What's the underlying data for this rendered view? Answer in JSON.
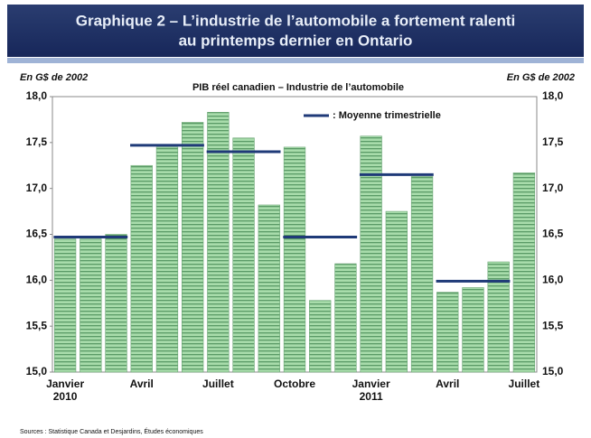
{
  "chart_data": {
    "type": "bar",
    "title": [
      "Graphique 2 – L’industrie de l’automobile a fortement ralenti",
      "au printemps dernier en Ontario"
    ],
    "subtitle": "PIB réel canadien – Industrie de l’automobile",
    "y_label": "En G$ de 2002",
    "y2_label": "En G$ de 2002",
    "source": "Sources : Statistique Canada et Desjardins, Études économiques",
    "categories": [
      "Janvier 2010",
      null,
      null,
      "Avril",
      null,
      null,
      "Juillet",
      null,
      null,
      "Octobre",
      null,
      null,
      "Janvier 2011",
      null,
      null,
      "Avril",
      null,
      null,
      "Juillet"
    ],
    "series": [
      {
        "name": "PIB réel",
        "color": "#9fd6a4",
        "values": [
          16.45,
          16.45,
          16.5,
          17.25,
          17.45,
          17.72,
          17.83,
          17.55,
          16.82,
          17.45,
          15.78,
          16.18,
          17.57,
          16.75,
          17.13,
          15.87,
          15.92,
          16.2,
          17.17
        ]
      },
      {
        "name": ": Moyenne trimestrielle",
        "color": "#1f3a78",
        "values": [
          null,
          16.47,
          null,
          null,
          17.47,
          null,
          null,
          17.4,
          null,
          null,
          16.47,
          null,
          null,
          17.15,
          null,
          null,
          15.99,
          null,
          null
        ]
      }
    ],
    "ylim": [
      15,
      18
    ],
    "yticks": [
      {
        "value": 15,
        "label": "15,0"
      },
      {
        "value": 15.5,
        "label": "15,5"
      },
      {
        "value": 16,
        "label": "16,0"
      },
      {
        "value": 16.5,
        "label": "16,5"
      },
      {
        "value": 17,
        "label": "17,0"
      },
      {
        "value": 17.5,
        "label": "17,5"
      },
      {
        "value": 18,
        "label": "18,0"
      }
    ]
  }
}
